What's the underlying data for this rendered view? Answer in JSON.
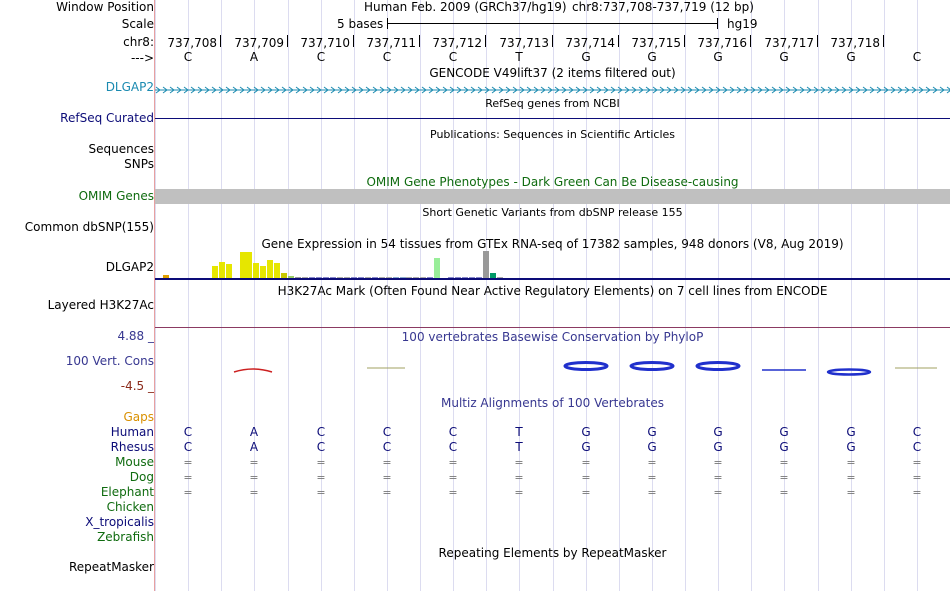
{
  "colors": {
    "gene_blue": "#1a8ab0",
    "refseq_navy": "#0c0c78",
    "omim_green": "#0f6b0f",
    "omim_bar": "#c0c0c0",
    "cons_blue": "#373790",
    "cons_red": "#8b2a1a",
    "gaps_orange": "#d99000",
    "human_navy": "#0c0c78",
    "green_species": "#0f6b0f",
    "h3k27_line": "#8b3a62"
  },
  "labels": {
    "window_position": "Window Position",
    "scale": "Scale",
    "chrom": "chr8:",
    "strand": "--->",
    "gencode_gene": "DLGAP2",
    "refseq": "RefSeq Curated",
    "sequences": "Sequences",
    "snps": "SNPs",
    "omim": "OMIM Genes",
    "dbsnp": "Common dbSNP(155)",
    "gtex_gene": "DLGAP2",
    "h3k27ac": "Layered H3K27Ac",
    "cons_max": "4.88 _",
    "cons_track": "100 Vert. Cons",
    "cons_min": "-4.5 _",
    "gaps": "Gaps",
    "human": "Human",
    "rhesus": "Rhesus",
    "mouse": "Mouse",
    "dog": "Dog",
    "elephant": "Elephant",
    "chicken": "Chicken",
    "x_tropicalis": "X_tropicalis",
    "zebrafish": "Zebrafish",
    "repeatmasker": "RepeatMasker"
  },
  "header": {
    "assembly": "Human Feb. 2009 (GRCh37/hg19)",
    "position": "chr8:737,708-737,719 (12 bp)",
    "scale_text": "5 bases",
    "scale_db": "hg19"
  },
  "ruler": {
    "ticks": [
      "737,708",
      "737,709",
      "737,710",
      "737,711",
      "737,712",
      "737,713",
      "737,714",
      "737,715",
      "737,716",
      "737,717",
      "737,718"
    ]
  },
  "sequence": {
    "bases": [
      "C",
      "A",
      "C",
      "C",
      "C",
      "T",
      "G",
      "G",
      "G",
      "G",
      "G",
      "C"
    ],
    "rhesus": [
      "C",
      "A",
      "C",
      "C",
      "C",
      "T",
      "G",
      "G",
      "G",
      "G",
      "G",
      "C"
    ],
    "mouse": [
      "=",
      "=",
      "=",
      "=",
      "=",
      "=",
      "=",
      "=",
      "=",
      "=",
      "=",
      "="
    ],
    "dog": [
      "=",
      "=",
      "=",
      "=",
      "=",
      "=",
      "=",
      "=",
      "=",
      "=",
      "=",
      "="
    ],
    "elephant": [
      "=",
      "=",
      "=",
      "=",
      "=",
      "=",
      "=",
      "=",
      "=",
      "=",
      "=",
      "="
    ]
  },
  "tracks": {
    "gencode_title": "GENCODE V49lift37 (2 items filtered out)",
    "refseq_title": "RefSeq genes from NCBI",
    "publications_title": "Publications: Sequences in Scientific Articles",
    "omim_title": "OMIM Gene Phenotypes - Dark Green Can Be Disease-causing",
    "dbsnp_title": "Short Genetic Variants from dbSNP release 155",
    "gtex_title": "Gene Expression in 54 tissues from GTEx RNA-seq of 17382 samples, 948 donors (V8, Aug 2019)",
    "h3k27ac_title": "H3K27Ac Mark (Often Found Near Active Regulatory Elements) on 7 cell lines from ENCODE",
    "phylop_title": "100 vertebrates Basewise Conservation by PhyloP",
    "multiz_title": "Multiz Alignments of 100 Vertebrates",
    "repeat_title": "Repeating Elements by RepeatMasker"
  },
  "gtex": {
    "bars": [
      {
        "h": 0.1,
        "c": "#e0a000"
      },
      {
        "h": 0.0,
        "c": "#ffffff"
      },
      {
        "h": 0.0,
        "c": "#ffffff"
      },
      {
        "h": 0.0,
        "c": "#ffffff"
      },
      {
        "h": 0.0,
        "c": "#ffffff"
      },
      {
        "h": 0.0,
        "c": "#ffffff"
      },
      {
        "h": 0.0,
        "c": "#ffffff"
      },
      {
        "h": 0.45,
        "c": "#e6e600"
      },
      {
        "h": 0.6,
        "c": "#e6e600"
      },
      {
        "h": 0.5,
        "c": "#e6e600"
      },
      {
        "h": 0.0,
        "c": "#ffffff"
      },
      {
        "h": 0.95,
        "c": "#e6e600"
      },
      {
        "h": 0.95,
        "c": "#e6e600"
      },
      {
        "h": 0.55,
        "c": "#e6e600"
      },
      {
        "h": 0.45,
        "c": "#e6e600"
      },
      {
        "h": 0.65,
        "c": "#e6e600"
      },
      {
        "h": 0.55,
        "c": "#e6e600"
      },
      {
        "h": 0.2,
        "c": "#c8c800"
      },
      {
        "h": 0.08,
        "c": "#99cc66"
      },
      {
        "h": 0.05,
        "c": "#999999"
      },
      {
        "h": 0.05,
        "c": "#aaaaaa"
      },
      {
        "h": 0.05,
        "c": "#8888cc"
      },
      {
        "h": 0.05,
        "c": "#8888cc"
      },
      {
        "h": 0.05,
        "c": "#8888cc"
      },
      {
        "h": 0.05,
        "c": "#8888cc"
      },
      {
        "h": 0.05,
        "c": "#aaaaaa"
      },
      {
        "h": 0.05,
        "c": "#aaaaaa"
      },
      {
        "h": 0.05,
        "c": "#8888cc"
      },
      {
        "h": 0.05,
        "c": "#8888cc"
      },
      {
        "h": 0.05,
        "c": "#aaaaaa"
      },
      {
        "h": 0.05,
        "c": "#8888cc"
      },
      {
        "h": 0.05,
        "c": "#aaaaaa"
      },
      {
        "h": 0.05,
        "c": "#aaaaaa"
      },
      {
        "h": 0.05,
        "c": "#88aacc"
      },
      {
        "h": 0.05,
        "c": "#88aacc"
      },
      {
        "h": 0.05,
        "c": "#aaaaaa"
      },
      {
        "h": 0.05,
        "c": "#aaaaaa"
      },
      {
        "h": 0.05,
        "c": "#aaaaaa"
      },
      {
        "h": 0.05,
        "c": "#8888cc"
      },
      {
        "h": 0.75,
        "c": "#99ee99"
      },
      {
        "h": 0.0,
        "c": "#ffffff"
      },
      {
        "h": 0.05,
        "c": "#8888cc"
      },
      {
        "h": 0.05,
        "c": "#8888cc"
      },
      {
        "h": 0.05,
        "c": "#8888cc"
      },
      {
        "h": 0.05,
        "c": "#8888cc"
      },
      {
        "h": 0.05,
        "c": "#8888cc"
      },
      {
        "h": 1.0,
        "c": "#999999"
      },
      {
        "h": 0.2,
        "c": "#009966"
      },
      {
        "h": 0.05,
        "c": "#aaaaaa"
      },
      {
        "h": 0.0,
        "c": "#ffffff"
      },
      {
        "h": 0.0,
        "c": "#ffffff"
      },
      {
        "h": 0.0,
        "c": "#ffffff"
      },
      {
        "h": 0.0,
        "c": "#ffffff"
      },
      {
        "h": 0.0,
        "c": "#ffffff"
      }
    ]
  }
}
